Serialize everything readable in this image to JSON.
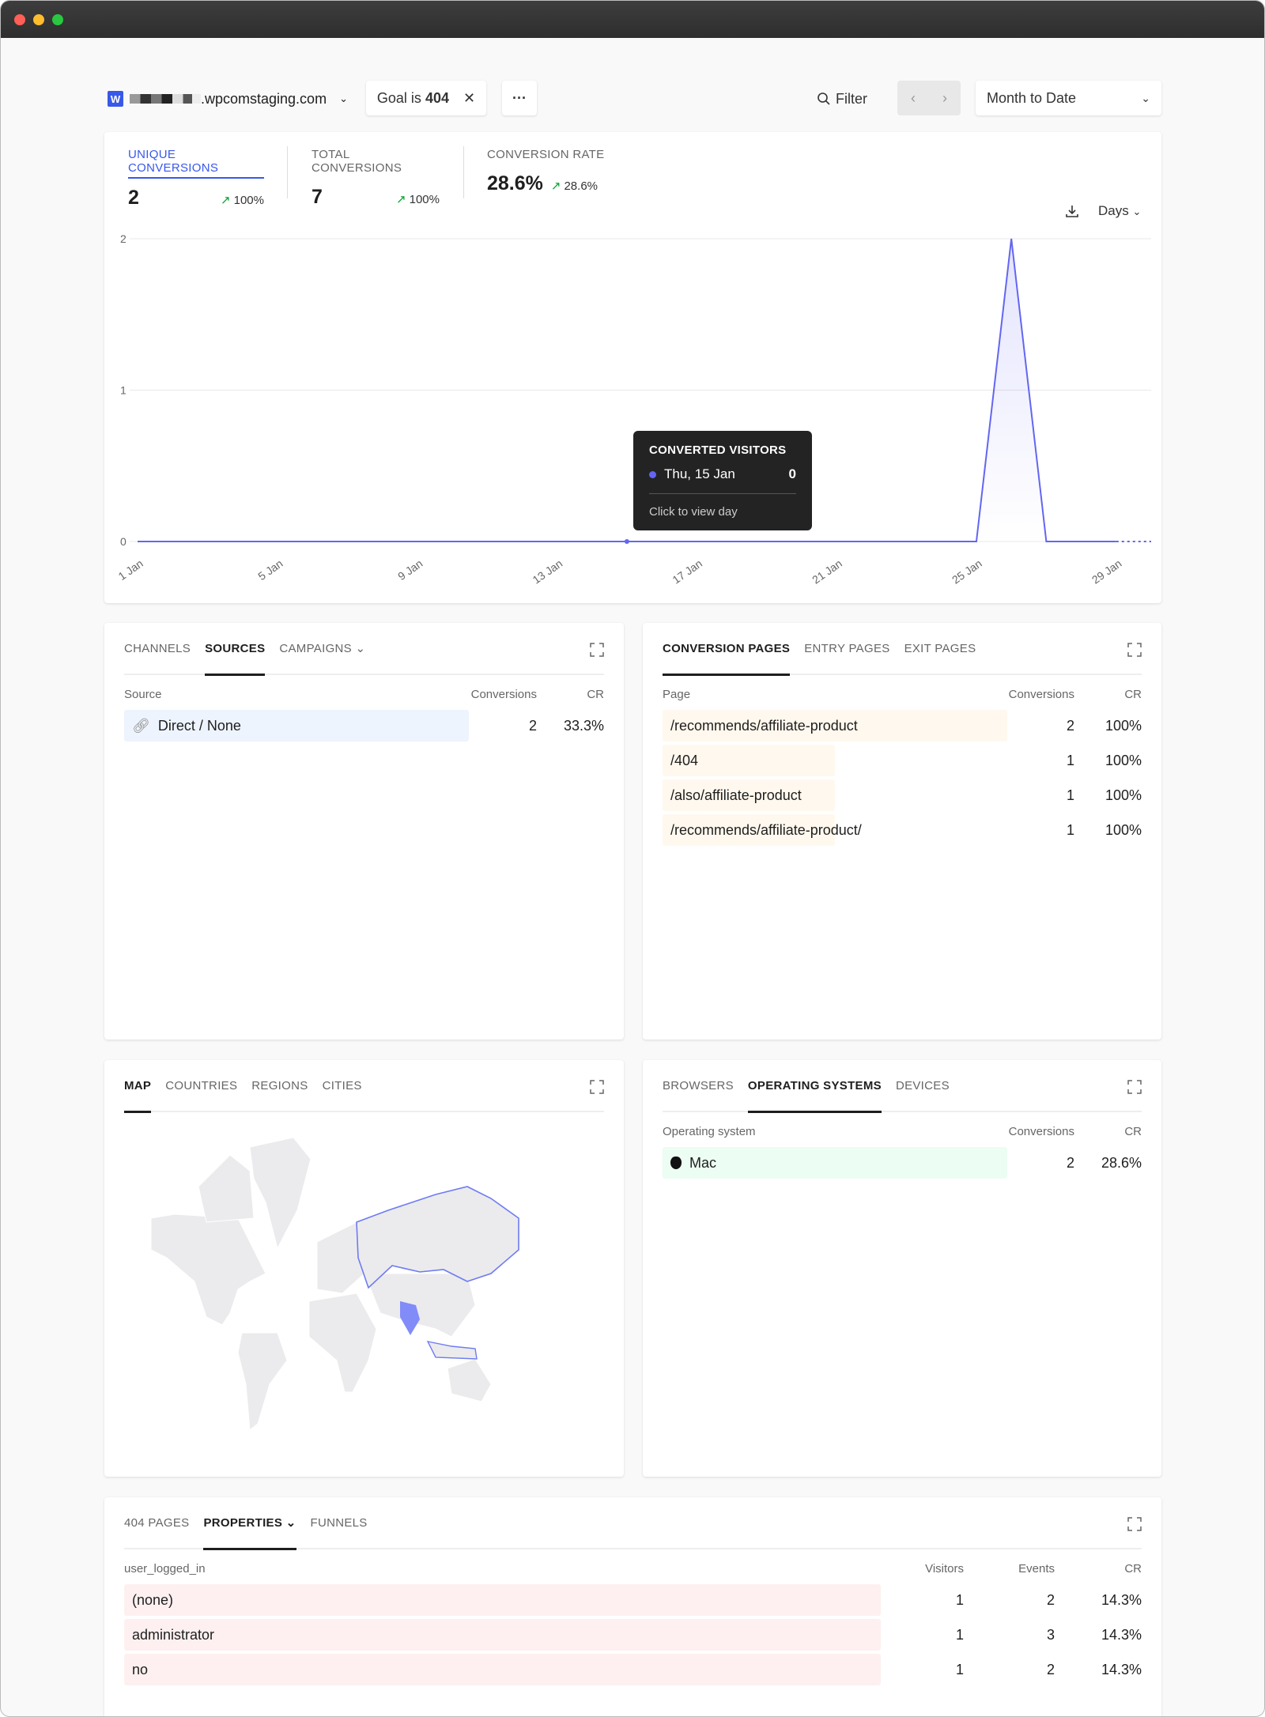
{
  "toolbar": {
    "site": ".wpcomstaging.com",
    "goal_prefix": "Goal is ",
    "goal_value": "404",
    "more": "···",
    "filter": "Filter",
    "period": "Month to Date"
  },
  "metrics": [
    {
      "label": "UNIQUE CONVERSIONS",
      "value": "2",
      "delta": "100%",
      "active": true
    },
    {
      "label": "TOTAL CONVERSIONS",
      "value": "7",
      "delta": "100%"
    },
    {
      "label": "CONVERSION RATE",
      "value": "28.6%",
      "delta": "28.6%"
    }
  ],
  "chart_controls": {
    "interval": "Days"
  },
  "chart_data": {
    "type": "area",
    "x": [
      "1 Jan",
      "2 Jan",
      "3 Jan",
      "4 Jan",
      "5 Jan",
      "6 Jan",
      "7 Jan",
      "8 Jan",
      "9 Jan",
      "10 Jan",
      "11 Jan",
      "12 Jan",
      "13 Jan",
      "14 Jan",
      "15 Jan",
      "16 Jan",
      "17 Jan",
      "18 Jan",
      "19 Jan",
      "20 Jan",
      "21 Jan",
      "22 Jan",
      "23 Jan",
      "24 Jan",
      "25 Jan",
      "26 Jan",
      "27 Jan",
      "28 Jan",
      "29 Jan",
      "30 Jan"
    ],
    "values": [
      0,
      0,
      0,
      0,
      0,
      0,
      0,
      0,
      0,
      0,
      0,
      0,
      0,
      0,
      0,
      0,
      0,
      0,
      0,
      0,
      0,
      0,
      0,
      0,
      0,
      2,
      0,
      0,
      0,
      0
    ],
    "tick_labels": [
      "1 Jan",
      "5 Jan",
      "9 Jan",
      "13 Jan",
      "17 Jan",
      "21 Jan",
      "25 Jan",
      "29 Jan"
    ],
    "y_ticks": [
      "0",
      "1",
      "2"
    ],
    "ylim": [
      0,
      2
    ],
    "grid": true,
    "partial_from": "29 Jan",
    "color": "#6366f1"
  },
  "tooltip": {
    "title": "CONVERTED VISITORS",
    "date": "Thu, 15 Jan",
    "value": "0",
    "hint": "Click to view day"
  },
  "sources": {
    "tabs": [
      "CHANNELS",
      "SOURCES",
      "CAMPAIGNS"
    ],
    "active": 1,
    "headers": [
      "Source",
      "Conversions",
      "CR"
    ],
    "rows": [
      {
        "label": "Direct / None",
        "conversions": "2",
        "cr": "33.3%"
      }
    ]
  },
  "pages": {
    "tabs": [
      "CONVERSION PAGES",
      "ENTRY PAGES",
      "EXIT PAGES"
    ],
    "active": 0,
    "headers": [
      "Page",
      "Conversions",
      "CR"
    ],
    "rows": [
      {
        "label": "/recommends/affiliate-product",
        "conversions": "2",
        "cr": "100%"
      },
      {
        "label": "/404",
        "conversions": "1",
        "cr": "100%"
      },
      {
        "label": "/also/affiliate-product",
        "conversions": "1",
        "cr": "100%"
      },
      {
        "label": "/recommends/affiliate-product/",
        "conversions": "1",
        "cr": "100%"
      }
    ]
  },
  "locations": {
    "tabs": [
      "MAP",
      "COUNTRIES",
      "REGIONS",
      "CITIES"
    ],
    "active": 0,
    "highlighted": [
      "India",
      "Russia",
      "Indonesia"
    ]
  },
  "devices": {
    "tabs": [
      "BROWSERS",
      "OPERATING SYSTEMS",
      "DEVICES"
    ],
    "active": 1,
    "headers": [
      "Operating system",
      "Conversions",
      "CR"
    ],
    "rows": [
      {
        "label": "Mac",
        "conversions": "2",
        "cr": "28.6%"
      }
    ]
  },
  "props": {
    "tabs": [
      "404 PAGES",
      "PROPERTIES",
      "FUNNELS"
    ],
    "active": 1,
    "headers": [
      "user_logged_in",
      "Visitors",
      "Events",
      "CR"
    ],
    "rows": [
      {
        "label": "(none)",
        "visitors": "1",
        "events": "2",
        "cr": "14.3%"
      },
      {
        "label": "administrator",
        "visitors": "1",
        "events": "3",
        "cr": "14.3%"
      },
      {
        "label": "no",
        "visitors": "1",
        "events": "2",
        "cr": "14.3%"
      }
    ]
  }
}
